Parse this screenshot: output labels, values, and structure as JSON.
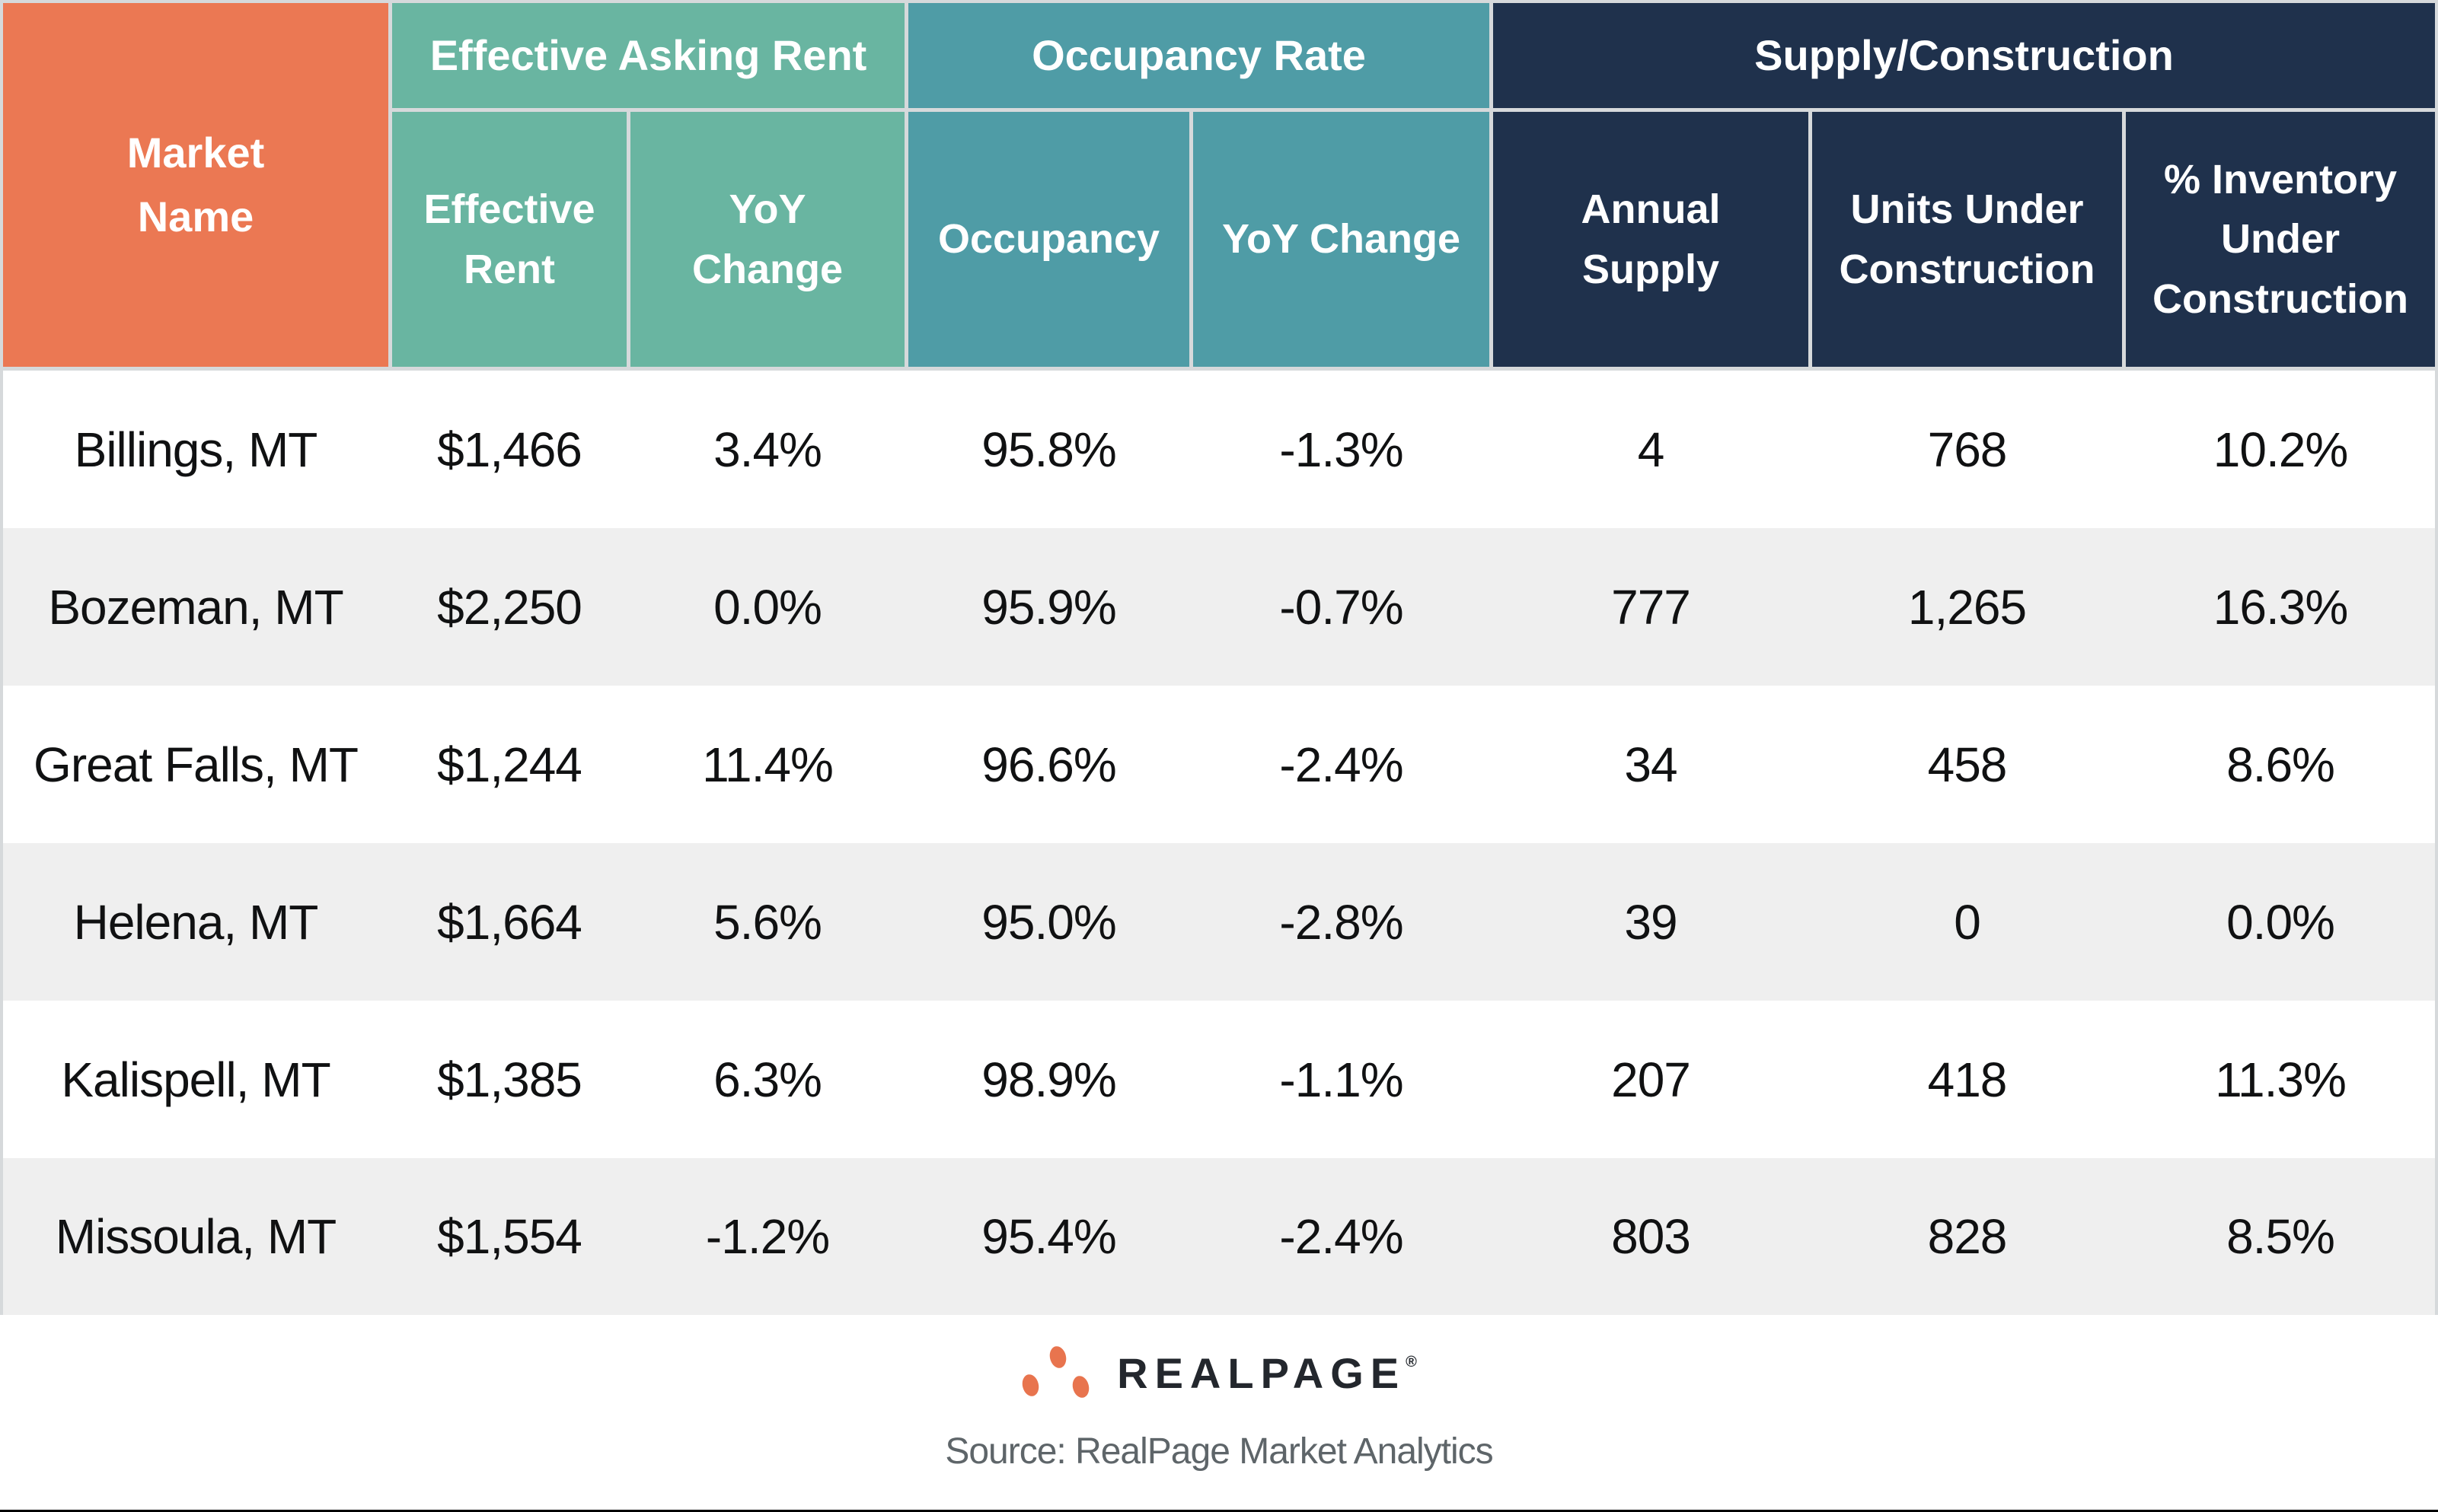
{
  "table": {
    "market_header": "Market\nName",
    "groups": [
      {
        "label": "Effective Asking Rent",
        "subs": [
          "Effective\nRent",
          "YoY\nChange"
        ]
      },
      {
        "label": "Occupancy Rate",
        "subs": [
          "Occupancy",
          "YoY Change"
        ]
      },
      {
        "label": "Supply/Construction",
        "subs": [
          "Annual\nSupply",
          "Units Under\nConstruction",
          "% Inventory\nUnder\nConstruction"
        ]
      }
    ],
    "rows": [
      {
        "market": "Billings, MT",
        "rent": "$1,466",
        "rent_yoy": "3.4%",
        "occ": "95.8%",
        "occ_yoy": "-1.3%",
        "supply": "4",
        "under_constr": "768",
        "pct_inventory": "10.2%"
      },
      {
        "market": "Bozeman, MT",
        "rent": "$2,250",
        "rent_yoy": "0.0%",
        "occ": "95.9%",
        "occ_yoy": "-0.7%",
        "supply": "777",
        "under_constr": "1,265",
        "pct_inventory": "16.3%"
      },
      {
        "market": "Great Falls, MT",
        "rent": "$1,244",
        "rent_yoy": "11.4%",
        "occ": "96.6%",
        "occ_yoy": "-2.4%",
        "supply": "34",
        "under_constr": "458",
        "pct_inventory": "8.6%"
      },
      {
        "market": "Helena, MT",
        "rent": "$1,664",
        "rent_yoy": "5.6%",
        "occ": "95.0%",
        "occ_yoy": "-2.8%",
        "supply": "39",
        "under_constr": "0",
        "pct_inventory": "0.0%"
      },
      {
        "market": "Kalispell, MT",
        "rent": "$1,385",
        "rent_yoy": "6.3%",
        "occ": "98.9%",
        "occ_yoy": "-1.1%",
        "supply": "207",
        "under_constr": "418",
        "pct_inventory": "11.3%"
      },
      {
        "market": "Missoula, MT",
        "rent": "$1,554",
        "rent_yoy": "-1.2%",
        "occ": "95.4%",
        "occ_yoy": "-2.4%",
        "supply": "803",
        "under_constr": "828",
        "pct_inventory": "8.5%"
      }
    ]
  },
  "footer": {
    "wordmark": "REALPAGE",
    "reg_mark": "®",
    "source": "Source: RealPage Market Analytics"
  },
  "colors": {
    "market_header_bg": "#EB7853",
    "rent_group_bg": "#69B5A1",
    "occupancy_group_bg": "#4F9CA6",
    "supply_group_bg": "#1F314C",
    "grid_border": "#D6D9DB",
    "alt_row_bg": "#EFEFEF",
    "logo_dot": "#E8744E",
    "source_text": "#5E6569"
  },
  "chart_data": {
    "type": "table",
    "title": "",
    "column_groups": [
      "Market Name",
      "Effective Asking Rent",
      "Effective Asking Rent",
      "Occupancy Rate",
      "Occupancy Rate",
      "Supply/Construction",
      "Supply/Construction",
      "Supply/Construction"
    ],
    "columns": [
      "Market Name",
      "Effective Rent",
      "YoY Change (Rent)",
      "Occupancy",
      "YoY Change (Occupancy)",
      "Annual Supply",
      "Units Under Construction",
      "% Inventory Under Construction"
    ],
    "rows": [
      [
        "Billings, MT",
        1466,
        3.4,
        95.8,
        -1.3,
        4,
        768,
        10.2
      ],
      [
        "Bozeman, MT",
        2250,
        0.0,
        95.9,
        -0.7,
        777,
        1265,
        16.3
      ],
      [
        "Great Falls, MT",
        1244,
        11.4,
        96.6,
        -2.4,
        34,
        458,
        8.6
      ],
      [
        "Helena, MT",
        1664,
        5.6,
        95.0,
        -2.8,
        39,
        0,
        0.0
      ],
      [
        "Kalispell, MT",
        1385,
        6.3,
        98.9,
        -1.1,
        207,
        418,
        11.3
      ],
      [
        "Missoula, MT",
        1554,
        -1.2,
        95.4,
        -2.4,
        803,
        828,
        8.5
      ]
    ],
    "units": [
      "",
      "USD",
      "%",
      "%",
      "%",
      "units",
      "units",
      "%"
    ],
    "source": "Source: RealPage Market Analytics"
  }
}
